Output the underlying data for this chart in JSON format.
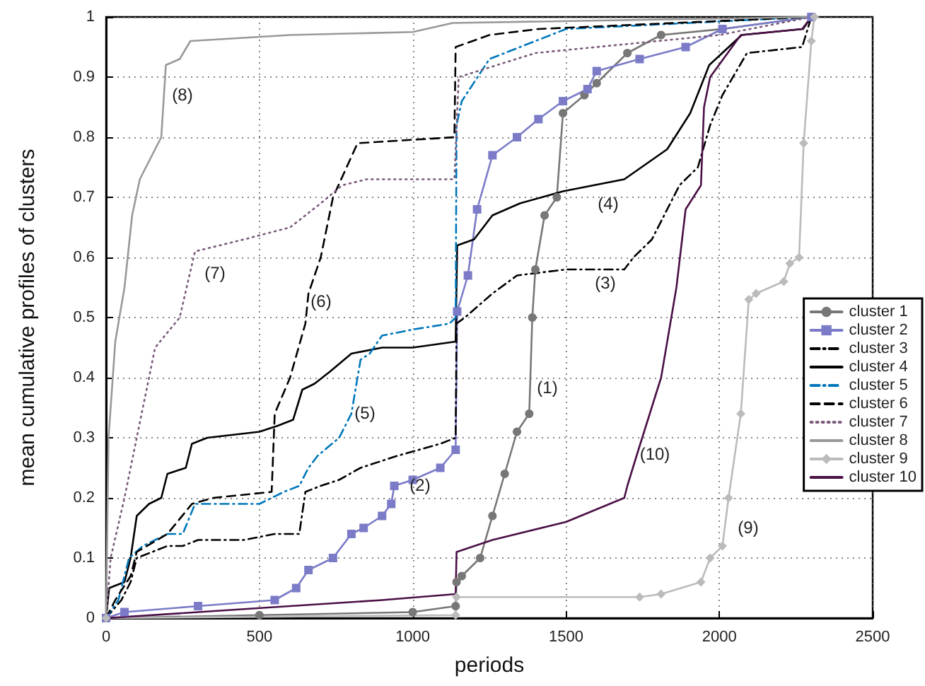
{
  "chart_data": {
    "type": "line",
    "xlabel": "periods",
    "ylabel": "mean cumulative profiles of clusters",
    "xlim": [
      0,
      2500
    ],
    "xticks": [
      0,
      500,
      1000,
      1500,
      2000,
      2500
    ],
    "ylim": [
      0,
      1
    ],
    "yticks": [
      0,
      0.1,
      0.2,
      0.3,
      0.4,
      0.5,
      0.6,
      0.7,
      0.8,
      0.9,
      1
    ],
    "grid": true,
    "legend": "right",
    "series": [
      {
        "name": "cluster 1",
        "color": "#777777",
        "marker": "circle",
        "line_style": "solid",
        "x": [
          0,
          500,
          1000,
          1140,
          1143,
          1160,
          1220,
          1260,
          1300,
          1340,
          1380,
          1390,
          1400,
          1430,
          1470,
          1490,
          1560,
          1600,
          1700,
          1810,
          2010,
          2300
        ],
        "values": [
          0,
          0.005,
          0.01,
          0.02,
          0.06,
          0.07,
          0.1,
          0.17,
          0.24,
          0.31,
          0.34,
          0.5,
          0.58,
          0.67,
          0.7,
          0.84,
          0.87,
          0.89,
          0.94,
          0.97,
          0.98,
          1
        ]
      },
      {
        "name": "cluster 2",
        "color": "#7b7bc8",
        "marker": "square",
        "line_style": "solid",
        "x": [
          0,
          60,
          300,
          550,
          620,
          660,
          740,
          800,
          840,
          900,
          930,
          940,
          1000,
          1090,
          1140,
          1145,
          1180,
          1210,
          1260,
          1340,
          1410,
          1490,
          1570,
          1600,
          1740,
          1890,
          2010,
          2300
        ],
        "values": [
          0,
          0.01,
          0.02,
          0.03,
          0.05,
          0.08,
          0.1,
          0.14,
          0.15,
          0.17,
          0.19,
          0.22,
          0.23,
          0.25,
          0.28,
          0.51,
          0.57,
          0.68,
          0.77,
          0.8,
          0.83,
          0.86,
          0.88,
          0.91,
          0.93,
          0.95,
          0.98,
          1
        ]
      },
      {
        "name": "cluster 3",
        "color": "#000000",
        "marker": "none",
        "line_style": "dashdot",
        "x": [
          0,
          50,
          80,
          100,
          200,
          250,
          300,
          450,
          550,
          630,
          650,
          700,
          760,
          830,
          950,
          1090,
          1140,
          1143,
          1170,
          1260,
          1340,
          1500,
          1690,
          1720,
          1780,
          1870,
          1930,
          1970,
          2010,
          2090,
          2270,
          2300
        ],
        "values": [
          0,
          0.03,
          0.06,
          0.1,
          0.12,
          0.12,
          0.13,
          0.13,
          0.14,
          0.14,
          0.21,
          0.22,
          0.23,
          0.25,
          0.27,
          0.29,
          0.3,
          0.49,
          0.5,
          0.54,
          0.57,
          0.58,
          0.58,
          0.6,
          0.63,
          0.72,
          0.75,
          0.82,
          0.87,
          0.94,
          0.95,
          1
        ]
      },
      {
        "name": "cluster 4",
        "color": "#000000",
        "marker": "none",
        "line_style": "solid",
        "x": [
          0,
          10,
          60,
          80,
          100,
          140,
          180,
          200,
          260,
          280,
          330,
          500,
          560,
          610,
          640,
          680,
          730,
          800,
          900,
          1000,
          1140,
          1145,
          1200,
          1260,
          1350,
          1490,
          1690,
          1830,
          1905,
          1967,
          2073,
          2273,
          2300
        ],
        "values": [
          0,
          0.05,
          0.06,
          0.1,
          0.17,
          0.19,
          0.2,
          0.24,
          0.25,
          0.29,
          0.3,
          0.31,
          0.32,
          0.33,
          0.38,
          0.39,
          0.41,
          0.44,
          0.45,
          0.45,
          0.46,
          0.62,
          0.63,
          0.67,
          0.69,
          0.71,
          0.73,
          0.78,
          0.84,
          0.92,
          0.97,
          0.98,
          1
        ]
      },
      {
        "name": "cluster 5",
        "color": "#0077bb",
        "marker": "none",
        "line_style": "dashdot",
        "x": [
          0,
          40,
          75,
          120,
          200,
          250,
          290,
          500,
          580,
          630,
          660,
          690,
          760,
          800,
          830,
          860,
          900,
          1000,
          1120,
          1140,
          1143,
          1160,
          1250,
          1400,
          1500,
          2300
        ],
        "values": [
          0,
          0.03,
          0.1,
          0.12,
          0.14,
          0.14,
          0.19,
          0.19,
          0.21,
          0.22,
          0.25,
          0.27,
          0.3,
          0.34,
          0.43,
          0.44,
          0.47,
          0.48,
          0.49,
          0.5,
          0.82,
          0.86,
          0.93,
          0.96,
          0.98,
          1
        ]
      },
      {
        "name": "cluster 6",
        "color": "#000000",
        "marker": "none",
        "line_style": "dashed",
        "x": [
          0,
          30,
          80,
          100,
          200,
          280,
          350,
          540,
          550,
          600,
          650,
          660,
          700,
          740,
          820,
          1136,
          1140,
          1250,
          1410,
          2300
        ],
        "values": [
          0,
          0.03,
          0.07,
          0.11,
          0.14,
          0.19,
          0.2,
          0.21,
          0.34,
          0.4,
          0.49,
          0.54,
          0.6,
          0.7,
          0.79,
          0.8,
          0.95,
          0.97,
          0.98,
          1
        ]
      },
      {
        "name": "cluster 7",
        "color": "#7a5a7a",
        "marker": "none",
        "line_style": "dotted",
        "x": [
          0,
          15,
          60,
          120,
          160,
          240,
          290,
          450,
          600,
          700,
          770,
          850,
          1136,
          1150,
          1400,
          1600,
          2000,
          2300
        ],
        "values": [
          0,
          0.1,
          0.2,
          0.35,
          0.45,
          0.5,
          0.61,
          0.63,
          0.65,
          0.69,
          0.72,
          0.73,
          0.73,
          0.9,
          0.94,
          0.95,
          0.97,
          1
        ]
      },
      {
        "name": "cluster 8",
        "color": "#999999",
        "marker": "none",
        "line_style": "solid",
        "x": [
          0,
          8,
          30,
          60,
          85,
          110,
          150,
          180,
          195,
          240,
          275,
          600,
          1000,
          1130,
          2300
        ],
        "values": [
          0,
          0.3,
          0.46,
          0.55,
          0.67,
          0.73,
          0.77,
          0.8,
          0.92,
          0.93,
          0.96,
          0.97,
          0.975,
          0.99,
          1
        ]
      },
      {
        "name": "cluster 9",
        "color": "#bbbbbb",
        "marker": "diamond",
        "line_style": "solid",
        "x": [
          0,
          1140,
          1143,
          1740,
          1810,
          1940,
          1970,
          2010,
          2030,
          2070,
          2096,
          2120,
          2210,
          2230,
          2260,
          2275,
          2300,
          2310
        ],
        "values": [
          0,
          0.005,
          0.035,
          0.035,
          0.04,
          0.06,
          0.1,
          0.12,
          0.2,
          0.34,
          0.53,
          0.54,
          0.56,
          0.59,
          0.6,
          0.79,
          0.96,
          1
        ]
      },
      {
        "name": "cluster 10",
        "color": "#4b1046",
        "marker": "none",
        "line_style": "solid",
        "x": [
          0,
          300,
          600,
          900,
          1140,
          1143,
          1260,
          1500,
          1690,
          1700,
          1730,
          1810,
          1860,
          1890,
          1940,
          1950,
          1970,
          2070,
          2270,
          2300
        ],
        "values": [
          0,
          0.01,
          0.02,
          0.03,
          0.04,
          0.11,
          0.13,
          0.16,
          0.2,
          0.22,
          0.27,
          0.4,
          0.55,
          0.68,
          0.72,
          0.85,
          0.9,
          0.97,
          0.98,
          1
        ]
      }
    ],
    "annotations": [
      "(1)",
      "(2)",
      "(3)",
      "(4)",
      "(5)",
      "(6)",
      "(7)",
      "(8)",
      "(9)",
      "(10)"
    ]
  }
}
